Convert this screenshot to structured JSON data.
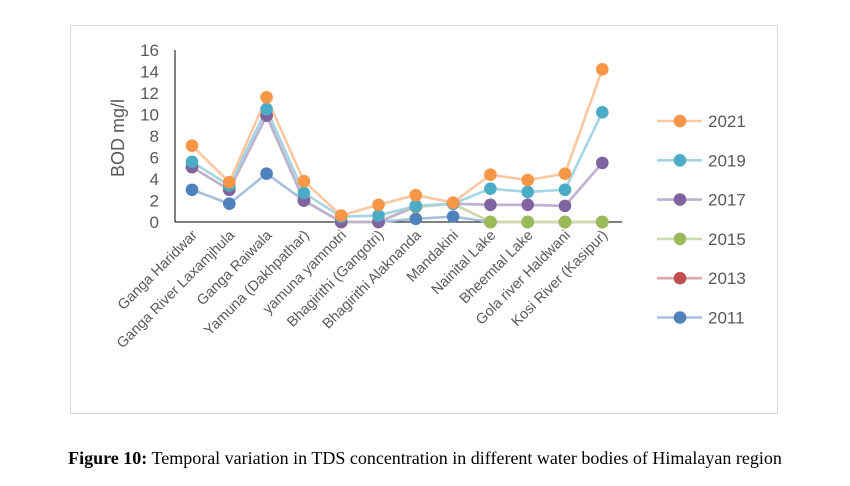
{
  "caption": {
    "label": "Figure 10:",
    "text": " Temporal variation in TDS concentration in different water bodies of Himalayan region"
  },
  "chart_data": {
    "type": "line",
    "title": "",
    "xlabel": "",
    "ylabel": "BOD mg/l",
    "ylim": [
      0,
      16
    ],
    "yticks": [
      "0",
      "2",
      "4",
      "6",
      "8",
      "10",
      "12",
      "14",
      "16"
    ],
    "grid": false,
    "legend_position": "right",
    "categories": [
      "Ganga Haridwar",
      "Ganga River Laxamjhula",
      "Ganga Raiwala",
      "Yamuna (Dakhpathar)",
      "yamuna yamnotri",
      "Bhagirithi (Gangotri)",
      "Bhagirithi Alaknanda",
      "Mandakini",
      "Nainital Lake",
      "Bheemtal Lake",
      "Gola river Haldwani",
      "Kosi River (Kasipur)"
    ],
    "series": [
      {
        "name": "2021",
        "color": "#f79646",
        "line_color": "#fac8a0",
        "values": [
          7.1,
          3.7,
          11.6,
          3.8,
          0.6,
          1.6,
          2.5,
          1.8,
          4.4,
          3.9,
          4.5,
          14.2
        ]
      },
      {
        "name": "2019",
        "color": "#4bacc6",
        "line_color": "#a5d5e3",
        "values": [
          5.6,
          3.4,
          10.5,
          2.7,
          0.5,
          0.6,
          1.5,
          1.7,
          3.1,
          2.8,
          3.0,
          10.2
        ]
      },
      {
        "name": "2017",
        "color": "#8064a2",
        "line_color": "#bfb1d0",
        "values": [
          5.1,
          3.0,
          9.9,
          2.0,
          0.0,
          0.0,
          1.5,
          1.7,
          1.6,
          1.6,
          1.5,
          5.5
        ]
      },
      {
        "name": "2015",
        "color": "#9bbb59",
        "line_color": "#cddcac",
        "values": [
          5.1,
          3.0,
          9.9,
          2.0,
          0.0,
          0.0,
          1.4,
          1.7,
          0.0,
          0.0,
          0.0,
          0.0
        ]
      },
      {
        "name": "2013",
        "color": "#c0504d",
        "line_color": "#dfa7a6",
        "values": [
          5.1,
          3.0,
          9.9,
          2.0,
          0.0,
          0.0,
          1.4,
          1.7,
          0.0,
          0.0,
          0.0,
          0.0
        ]
      },
      {
        "name": "2011",
        "color": "#4f81bd",
        "line_color": "#a7c0de",
        "values": [
          3.0,
          1.7,
          4.5,
          2.0,
          0.0,
          0.0,
          0.3,
          0.5,
          0.0,
          0.0,
          0.0,
          0.0
        ]
      }
    ]
  }
}
